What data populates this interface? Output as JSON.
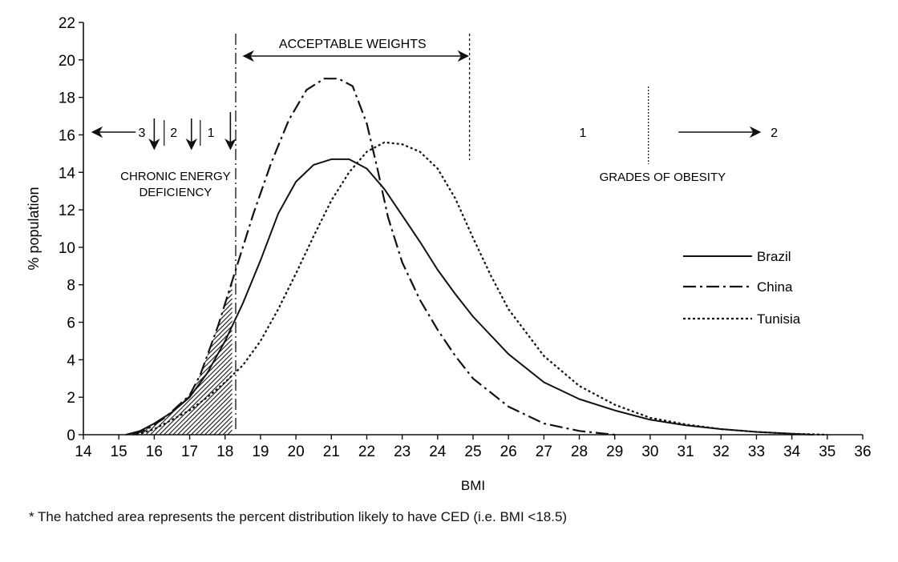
{
  "chart_data": {
    "type": "line",
    "xlabel": "BMI",
    "ylabel": "% population",
    "xlim": [
      14,
      36
    ],
    "ylim": [
      0,
      22
    ],
    "x_ticks": [
      14,
      15,
      16,
      17,
      18,
      19,
      20,
      21,
      22,
      23,
      24,
      25,
      26,
      27,
      28,
      29,
      30,
      31,
      32,
      33,
      34,
      35,
      36
    ],
    "y_ticks": [
      0,
      2,
      4,
      6,
      8,
      10,
      12,
      14,
      16,
      18,
      20,
      22
    ],
    "grid": false,
    "legend_position": "right",
    "series": [
      {
        "name": "Brazil",
        "style": "solid",
        "points": [
          [
            15.2,
            0
          ],
          [
            15.6,
            0.2
          ],
          [
            16,
            0.6
          ],
          [
            16.5,
            1.2
          ],
          [
            17,
            2
          ],
          [
            17.5,
            3.3
          ],
          [
            18,
            5
          ],
          [
            18.5,
            7
          ],
          [
            19,
            9.3
          ],
          [
            19.5,
            11.8
          ],
          [
            20,
            13.5
          ],
          [
            20.5,
            14.4
          ],
          [
            21,
            14.7
          ],
          [
            21.5,
            14.7
          ],
          [
            22,
            14.2
          ],
          [
            22.5,
            13.1
          ],
          [
            23,
            11.7
          ],
          [
            23.5,
            10.3
          ],
          [
            24,
            8.8
          ],
          [
            24.5,
            7.5
          ],
          [
            25,
            6.3
          ],
          [
            26,
            4.3
          ],
          [
            27,
            2.8
          ],
          [
            28,
            1.9
          ],
          [
            29,
            1.3
          ],
          [
            30,
            0.8
          ],
          [
            31,
            0.5
          ],
          [
            32,
            0.3
          ],
          [
            33,
            0.15
          ],
          [
            34,
            0.05
          ],
          [
            34.6,
            0
          ]
        ]
      },
      {
        "name": "China",
        "style": "dash-dot",
        "points": [
          [
            15.4,
            0
          ],
          [
            15.8,
            0.3
          ],
          [
            16.3,
            0.9
          ],
          [
            17,
            2.1
          ],
          [
            17.3,
            3.2
          ],
          [
            17.8,
            5.8
          ],
          [
            18.3,
            8.8
          ],
          [
            18.8,
            11.8
          ],
          [
            19.3,
            14.5
          ],
          [
            19.8,
            16.8
          ],
          [
            20.3,
            18.4
          ],
          [
            20.8,
            19
          ],
          [
            21.2,
            19
          ],
          [
            21.6,
            18.6
          ],
          [
            22,
            16.6
          ],
          [
            22.3,
            14.2
          ],
          [
            22.6,
            11.6
          ],
          [
            23,
            9.2
          ],
          [
            23.5,
            7.2
          ],
          [
            24,
            5.6
          ],
          [
            24.5,
            4.2
          ],
          [
            25,
            3
          ],
          [
            26,
            1.5
          ],
          [
            27,
            0.6
          ],
          [
            28,
            0.2
          ],
          [
            29,
            0
          ]
        ]
      },
      {
        "name": "Tunisia",
        "style": "dotted",
        "points": [
          [
            15.5,
            0
          ],
          [
            16,
            0.3
          ],
          [
            16.5,
            0.8
          ],
          [
            17,
            1.3
          ],
          [
            17.5,
            2
          ],
          [
            18,
            2.8
          ],
          [
            18.5,
            3.7
          ],
          [
            19,
            5
          ],
          [
            19.5,
            6.7
          ],
          [
            20,
            8.6
          ],
          [
            20.5,
            10.6
          ],
          [
            21,
            12.5
          ],
          [
            21.5,
            14
          ],
          [
            22,
            15.1
          ],
          [
            22.5,
            15.6
          ],
          [
            23,
            15.5
          ],
          [
            23.5,
            15.1
          ],
          [
            24,
            14.2
          ],
          [
            24.5,
            12.6
          ],
          [
            25,
            10.5
          ],
          [
            25.5,
            8.5
          ],
          [
            26,
            6.7
          ],
          [
            27,
            4.2
          ],
          [
            28,
            2.6
          ],
          [
            29,
            1.6
          ],
          [
            30,
            0.9
          ],
          [
            31,
            0.55
          ],
          [
            32,
            0.3
          ],
          [
            33,
            0.15
          ],
          [
            34,
            0.05
          ],
          [
            35,
            0
          ]
        ]
      }
    ],
    "annotations": {
      "acceptable_weights": {
        "text": "ACCEPTABLE WEIGHTS",
        "from": 18.3,
        "to": 24.9
      },
      "ced_label": [
        "CHRONIC ENERGY",
        "DEFICIENCY"
      ],
      "ced_grades": [
        {
          "label": "3",
          "bmi": 14.3,
          "arrow": "left"
        },
        {
          "label": "2",
          "bmi": 16.0,
          "arrow": "down"
        },
        {
          "label": "1",
          "bmi": 17.05,
          "arrow": "down"
        },
        {
          "label": "",
          "bmi": 18.15,
          "arrow": "down"
        }
      ],
      "obesity_label": "GRADES OF OBESITY",
      "obesity_grades": [
        "1",
        "2"
      ],
      "obesity_divider_bmi": 29.95,
      "hatched_region": {
        "from": 15.2,
        "to": 18.2
      }
    }
  },
  "footnote": "* The hatched area represents the percent distribution likely to have CED (i.e. BMI <18.5)"
}
